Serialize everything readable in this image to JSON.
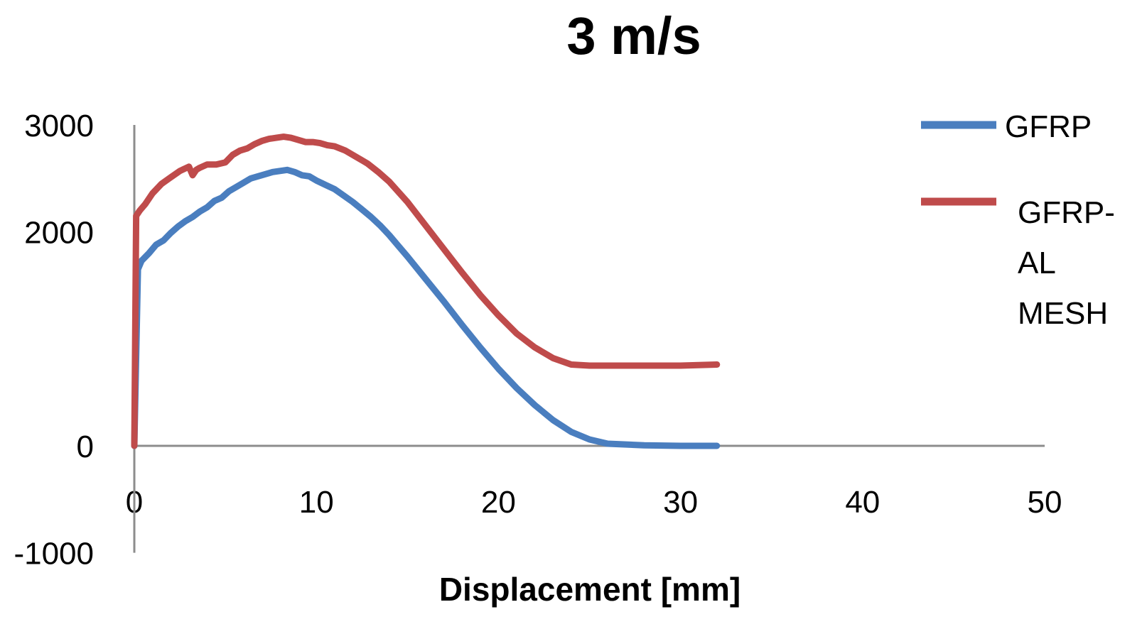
{
  "chart_data": {
    "type": "line",
    "title": "3 m/s",
    "xlabel": "Displacement [mm]",
    "ylabel": "",
    "xlim": [
      0,
      50
    ],
    "ylim": [
      -1000,
      3000
    ],
    "xticks": [
      "0",
      "10",
      "20",
      "30",
      "40",
      "50"
    ],
    "yticks": [
      "3000",
      "2000",
      "0",
      "-1000"
    ],
    "ytick_values": [
      3000,
      2000,
      0,
      -1000
    ],
    "xtick_values": [
      0,
      10,
      20,
      30,
      40,
      50
    ],
    "grid": false,
    "legend_position": "right",
    "series": [
      {
        "name": "GFRP",
        "color": "#4a7ebf",
        "x": [
          0,
          0.2,
          0.4,
          0.8,
          1.2,
          1.6,
          2.0,
          2.4,
          2.8,
          3.2,
          3.6,
          4.0,
          4.4,
          4.8,
          5.2,
          5.6,
          6.0,
          6.4,
          6.8,
          7.2,
          7.6,
          8.0,
          8.4,
          8.8,
          9.2,
          9.6,
          10.0,
          10.5,
          11.0,
          11.5,
          12.0,
          12.5,
          13.0,
          13.5,
          14.0,
          14.5,
          15.0,
          16.0,
          17.0,
          18.0,
          19.0,
          20.0,
          21.0,
          22.0,
          23.0,
          24.0,
          25.0,
          26.0,
          28.0,
          30.0,
          32.0
        ],
        "y": [
          0,
          1650,
          1730,
          1800,
          1880,
          1920,
          1990,
          2050,
          2100,
          2140,
          2190,
          2230,
          2290,
          2320,
          2380,
          2420,
          2460,
          2500,
          2520,
          2540,
          2560,
          2570,
          2580,
          2560,
          2530,
          2520,
          2480,
          2440,
          2400,
          2340,
          2280,
          2210,
          2140,
          2060,
          1970,
          1870,
          1770,
          1560,
          1350,
          1130,
          920,
          720,
          540,
          380,
          240,
          130,
          60,
          20,
          5,
          0,
          0
        ]
      },
      {
        "name": "GFRP-\nAL\nMESH",
        "color": "#bf4b4b",
        "x": [
          0,
          0.1,
          0.3,
          0.6,
          1.0,
          1.5,
          2.0,
          2.5,
          3.0,
          3.2,
          3.4,
          3.6,
          4.0,
          4.5,
          5.0,
          5.4,
          5.8,
          6.2,
          6.6,
          7.0,
          7.4,
          7.8,
          8.2,
          8.6,
          9.0,
          9.4,
          9.8,
          10.2,
          10.6,
          11.0,
          11.6,
          12.2,
          12.8,
          13.4,
          14.0,
          15.0,
          16.0,
          17.0,
          18.0,
          19.0,
          20.0,
          21.0,
          22.0,
          23.0,
          24.0,
          25.0,
          26.0,
          28.0,
          30.0,
          32.0
        ],
        "y": [
          0,
          2150,
          2200,
          2260,
          2360,
          2450,
          2510,
          2570,
          2610,
          2530,
          2580,
          2600,
          2630,
          2630,
          2650,
          2720,
          2760,
          2780,
          2820,
          2850,
          2870,
          2880,
          2890,
          2880,
          2860,
          2840,
          2840,
          2830,
          2810,
          2800,
          2760,
          2700,
          2640,
          2560,
          2470,
          2280,
          2060,
          1840,
          1620,
          1410,
          1220,
          1050,
          920,
          820,
          760,
          750,
          750,
          750,
          750,
          760
        ]
      }
    ]
  }
}
